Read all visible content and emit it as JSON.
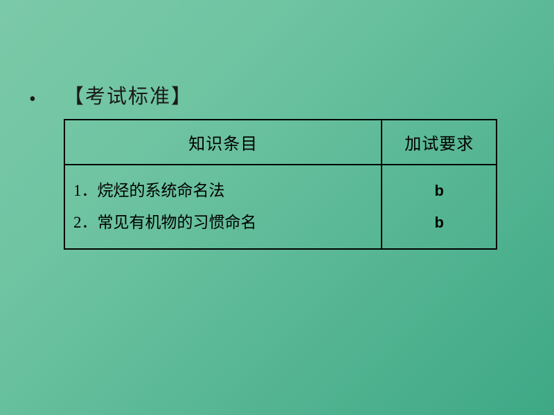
{
  "heading": "【考试标准】",
  "table": {
    "columns": [
      "知识条目",
      "加试要求"
    ],
    "rows": [
      {
        "topic": "1．烷烃的系统命名法",
        "requirement": "b"
      },
      {
        "topic": "2．常见有机物的习惯命名",
        "requirement": "b"
      }
    ],
    "border_color": "#000000",
    "header_fontsize": 24,
    "body_fontsize": 23,
    "req_font_family": "Arial",
    "req_font_weight": "bold"
  },
  "background": {
    "gradient_from": "#7bc9a8",
    "gradient_to": "#3ea885"
  }
}
